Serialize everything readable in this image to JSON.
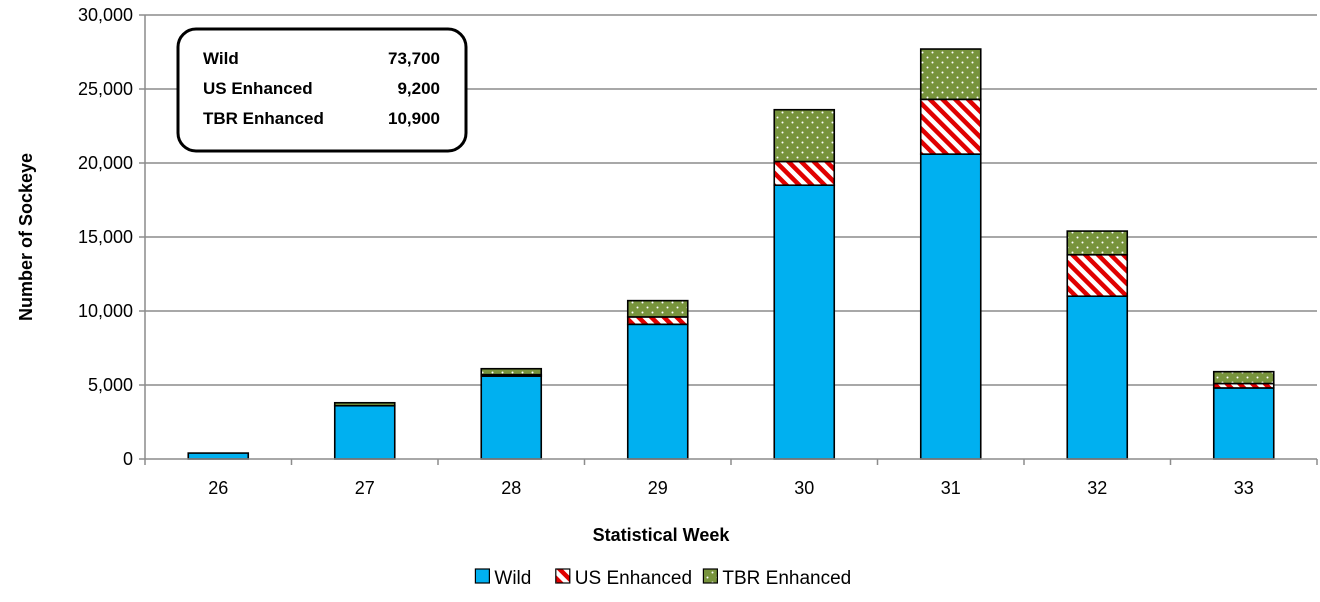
{
  "chart_data": {
    "type": "bar",
    "stacked": true,
    "categories": [
      "26",
      "27",
      "28",
      "29",
      "30",
      "31",
      "32",
      "33"
    ],
    "series": [
      {
        "name": "Wild",
        "values": [
          400,
          3600,
          5600,
          9100,
          18500,
          20600,
          11000,
          4800
        ],
        "color": "#00b0f0",
        "pattern": "solid"
      },
      {
        "name": "US Enhanced",
        "values": [
          0,
          0,
          100,
          500,
          1600,
          3700,
          2800,
          300
        ],
        "color": "#e00000",
        "pattern": "diagonal-stripes"
      },
      {
        "name": "TBR Enhanced",
        "values": [
          0,
          200,
          400,
          1100,
          3500,
          3400,
          1600,
          800
        ],
        "color": "#77933c",
        "pattern": "dots"
      }
    ],
    "xlabel": "Statistical Week",
    "ylabel": "Number of Sockeye",
    "ylim": [
      0,
      30000
    ],
    "yticks": [
      0,
      5000,
      10000,
      15000,
      20000,
      25000,
      30000
    ],
    "ytick_labels": [
      "0",
      "5,000",
      "10,000",
      "15,000",
      "20,000",
      "25,000",
      "30,000"
    ],
    "grid": true,
    "legend_position": "bottom",
    "annotation": {
      "rows": [
        {
          "label": "Wild",
          "value": "73,700"
        },
        {
          "label": "US Enhanced",
          "value": "9,200"
        },
        {
          "label": "TBR Enhanced",
          "value": "10,900"
        }
      ],
      "position": "top-left"
    }
  }
}
